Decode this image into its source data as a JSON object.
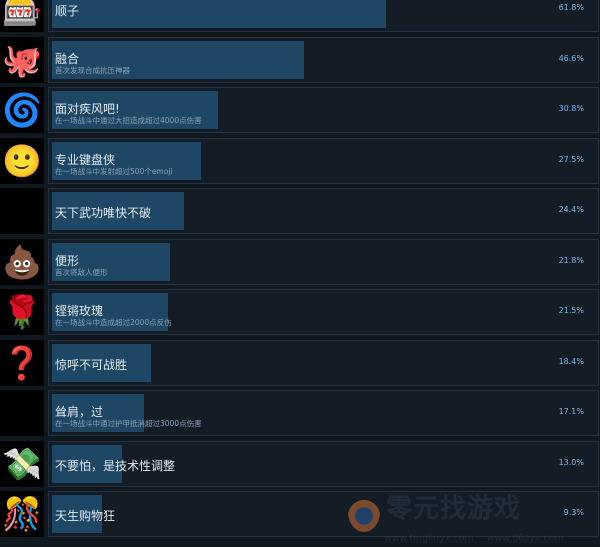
{
  "achievements": [
    {
      "title": "顺子",
      "desc": "",
      "percent": 61.8,
      "percent_label": "61.8%",
      "icon": "slot-machine-icon",
      "glyph": "🎰"
    },
    {
      "title": "融合",
      "desc": "首次发现合成抗压神器",
      "percent": 46.6,
      "percent_label": "46.6%",
      "icon": "octopus-icon",
      "glyph": "🐙"
    },
    {
      "title": "面对疾风吧!",
      "desc": "在一场战斗中通过大招造成超过4000点伤害",
      "percent": 30.8,
      "percent_label": "30.8%",
      "icon": "cyclone-icon",
      "glyph": "🌀"
    },
    {
      "title": "专业键盘侠",
      "desc": "在一场战斗中发射超过500个emoji",
      "percent": 27.5,
      "percent_label": "27.5%",
      "icon": "smiley-icon",
      "glyph": "🙂"
    },
    {
      "title": "天下武功唯快不破",
      "desc": "",
      "percent": 24.4,
      "percent_label": "24.4%",
      "icon": "lightning-box-icon",
      "glyph": "⚡"
    },
    {
      "title": "便形",
      "desc": "首次将敌人便形",
      "percent": 21.8,
      "percent_label": "21.8%",
      "icon": "poop-icon",
      "glyph": "💩"
    },
    {
      "title": "铿锵玫瑰",
      "desc": "在一场战斗中造成超过2000点反伤",
      "percent": 21.5,
      "percent_label": "21.5%",
      "icon": "rose-icon",
      "glyph": "🌹"
    },
    {
      "title": "惊呼不可战胜",
      "desc": "",
      "percent": 18.4,
      "percent_label": "18.4%",
      "icon": "question-box-icon",
      "glyph": "❓"
    },
    {
      "title": "耸肩，过",
      "desc": "在一场战斗中通过护甲抵消超过3000点伤害",
      "percent": 17.1,
      "percent_label": "17.1%",
      "icon": "shield-icon",
      "glyph": "🛡"
    },
    {
      "title": "不要怕，是技术性调整",
      "desc": "",
      "percent": 13.0,
      "percent_label": "13.0%",
      "icon": "flying-money-icon",
      "glyph": "💸"
    },
    {
      "title": "天生购物狂",
      "desc": "",
      "percent": 9.3,
      "percent_label": "9.3%",
      "icon": "confetti-icon",
      "glyph": "🎊"
    }
  ],
  "watermark": {
    "name": "零元找游戏",
    "urls": "www.tinglinyx.com www.06zyx.com"
  },
  "colors": {
    "bar": "#1d4764",
    "panel": "#141c26",
    "percent": "#78b8e8"
  }
}
